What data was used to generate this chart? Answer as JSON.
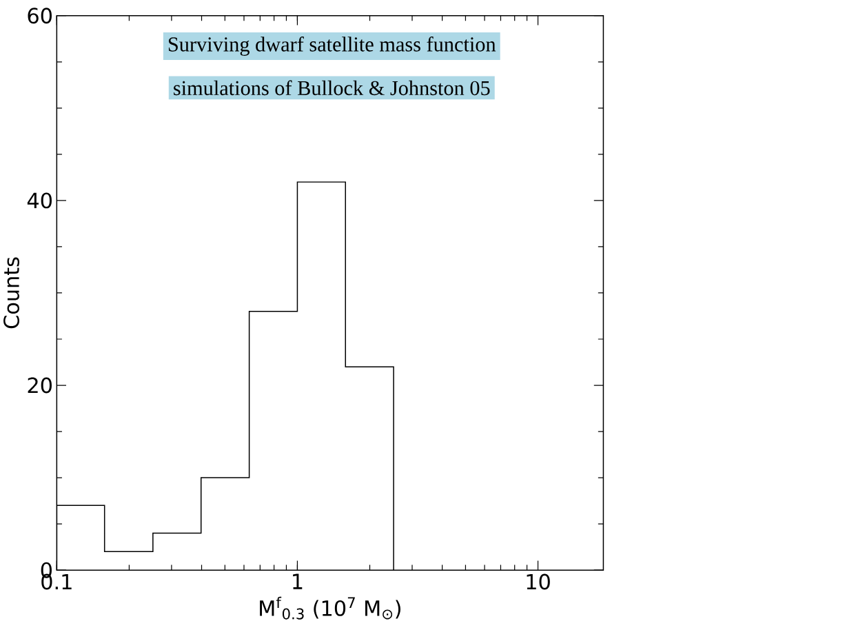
{
  "chart_data": {
    "type": "histogram",
    "title": "Surviving dwarf satellite mass function",
    "subtitle": "simulations of Bullock & Johnston 05",
    "xlabel": "M$^{f}$$_{0.3}$ (10$^{7}$ M$_{⊙}$)",
    "ylabel": "Counts",
    "bins": [
      0.1,
      0.158,
      0.251,
      0.398,
      0.631,
      1,
      1.585,
      2.512
    ],
    "values": [
      7,
      2,
      4,
      10,
      28,
      42,
      22
    ],
    "color": "#000000",
    "log": "x",
    "xlim": [
      0.1,
      18.7
    ],
    "ylim": [
      0,
      60
    ],
    "xticks": [
      0.1,
      1,
      10
    ],
    "yticks": [
      0,
      20,
      40,
      60
    ]
  }
}
